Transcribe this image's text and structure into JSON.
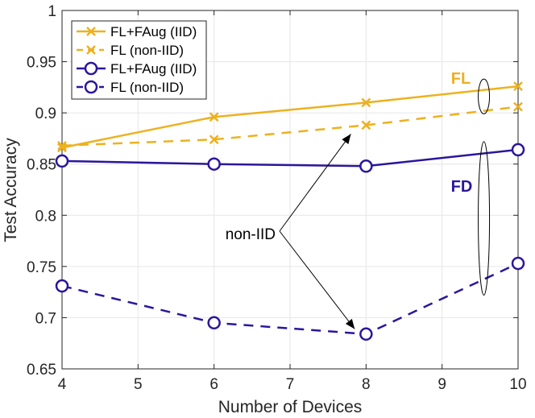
{
  "chart_data": {
    "type": "line",
    "title": "",
    "xlabel": "Number of Devices",
    "ylabel": "Test Accuracy",
    "xlim": [
      4,
      10
    ],
    "ylim": [
      0.65,
      1
    ],
    "xticks": [
      4,
      5,
      6,
      7,
      8,
      9,
      10
    ],
    "yticks": [
      0.65,
      0.7,
      0.75,
      0.8,
      0.85,
      0.9,
      0.95,
      1
    ],
    "ytick_labels": [
      "0.65",
      "0.7",
      "0.75",
      "0.8",
      "0.85",
      "0.9",
      "0.95",
      "1"
    ],
    "grid": true,
    "legend_position": "top-left",
    "x": [
      4,
      6,
      8,
      10
    ],
    "series": [
      {
        "name": "FL+FAug (IID)",
        "group": "FL",
        "color": "#EDB120",
        "dash": "solid",
        "marker": "x",
        "values": [
          0.866,
          0.896,
          0.91,
          0.926
        ]
      },
      {
        "name": "FL (non-IID)",
        "group": "FL",
        "color": "#EDB120",
        "dash": "dashed",
        "marker": "x",
        "values": [
          0.868,
          0.874,
          0.888,
          0.906
        ]
      },
      {
        "name": "FL+FAug (IID)",
        "group": "FD",
        "color": "#2B169C",
        "dash": "solid",
        "marker": "o",
        "values": [
          0.853,
          0.85,
          0.848,
          0.864
        ]
      },
      {
        "name": "FL (non-IID)",
        "group": "FD",
        "color": "#2B169C",
        "dash": "dashed",
        "marker": "o",
        "values": [
          0.731,
          0.695,
          0.684,
          0.753
        ]
      }
    ],
    "annotations": [
      {
        "text": "non-IID",
        "points_to": [
          {
            "x": 7.8,
            "y": 0.888
          },
          {
            "x": 7.85,
            "y": 0.685
          }
        ]
      },
      {
        "text": "FL",
        "color": "#EDB120",
        "group_ellipse": {
          "x": 9.55,
          "y_range": [
            0.899,
            0.933
          ]
        }
      },
      {
        "text": "FD",
        "color": "#2B169C",
        "group_ellipse": {
          "x": 9.55,
          "y_range": [
            0.722,
            0.872
          ]
        }
      }
    ]
  }
}
